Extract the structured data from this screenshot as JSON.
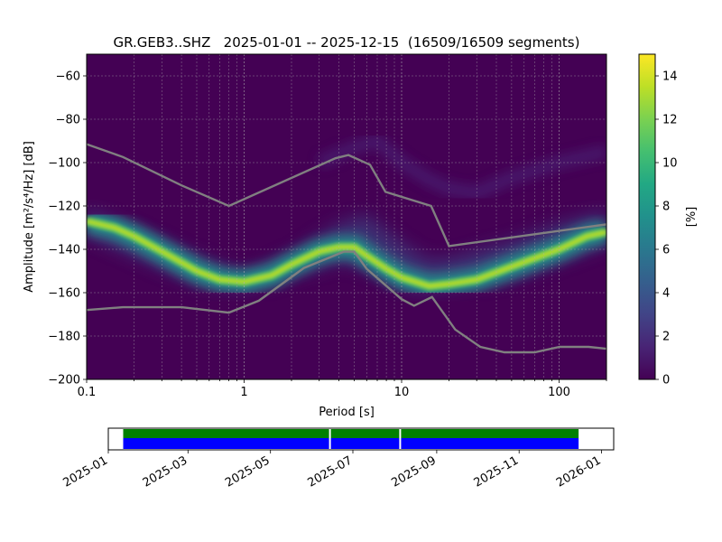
{
  "chart_data": [
    {
      "type": "heatmap",
      "title": "GR.GEB3..SHZ   2025-01-01 -- 2025-12-15  (16509/16509 segments)",
      "xlabel": "Period [s]",
      "ylabel": "Amplitude [m²/s⁴/Hz] [dB]",
      "x_scale": "log",
      "xlim": [
        0.1,
        200
      ],
      "ylim": [
        -200,
        -50
      ],
      "x_ticks": [
        0.1,
        1,
        10,
        100
      ],
      "x_tick_labels": [
        "0.1",
        "1",
        "10",
        "100"
      ],
      "y_ticks": [
        -200,
        -180,
        -160,
        -140,
        -120,
        -100,
        -80,
        -60
      ],
      "y_tick_labels": [
        "−200",
        "−180",
        "−160",
        "−140",
        "−120",
        "−100",
        "−80",
        "−60"
      ],
      "grid": true,
      "colormap": "viridis",
      "colorbar": {
        "label": "[%]",
        "range": [
          0,
          15
        ],
        "ticks": [
          0,
          2,
          4,
          6,
          8,
          10,
          12,
          14
        ],
        "tick_labels": [
          "0",
          "2",
          "4",
          "6",
          "8",
          "10",
          "12",
          "14"
        ]
      },
      "series": [
        {
          "role": "mode",
          "points": [
            [
              0.1,
              -127
            ],
            [
              0.15,
              -130
            ],
            [
              0.2,
              -134
            ],
            [
              0.3,
              -141
            ],
            [
              0.5,
              -150
            ],
            [
              0.7,
              -154
            ],
            [
              1,
              -155
            ],
            [
              1.5,
              -152
            ],
            [
              2,
              -147
            ],
            [
              3,
              -141
            ],
            [
              4,
              -139
            ],
            [
              5,
              -139
            ],
            [
              6,
              -143
            ],
            [
              8,
              -149
            ],
            [
              10,
              -153
            ],
            [
              15,
              -157
            ],
            [
              20,
              -156
            ],
            [
              30,
              -154
            ],
            [
              50,
              -148
            ],
            [
              100,
              -140
            ],
            [
              150,
              -134
            ],
            [
              200,
              -132
            ]
          ]
        },
        {
          "role": "upper spread",
          "points": [
            [
              0.1,
              -121
            ],
            [
              0.5,
              -143
            ],
            [
              1,
              -151
            ],
            [
              2,
              -142
            ],
            [
              4,
              -128
            ],
            [
              6,
              -124
            ],
            [
              10,
              -137
            ],
            [
              15,
              -145
            ],
            [
              20,
              -144
            ],
            [
              50,
              -136
            ],
            [
              100,
              -128
            ],
            [
              200,
              -122
            ]
          ]
        },
        {
          "role": "lower spread",
          "points": [
            [
              0.1,
              -134
            ],
            [
              0.5,
              -156
            ],
            [
              1,
              -159
            ],
            [
              2,
              -153
            ],
            [
              4,
              -146
            ],
            [
              6,
              -149
            ],
            [
              10,
              -158
            ],
            [
              15,
              -160
            ],
            [
              20,
              -158
            ],
            [
              50,
              -154
            ],
            [
              100,
              -146
            ],
            [
              200,
              -138
            ]
          ]
        },
        {
          "role": "faint high band",
          "points": [
            [
              3,
              -100
            ],
            [
              5,
              -93
            ],
            [
              7,
              -90
            ],
            [
              10,
              -100
            ],
            [
              15,
              -108
            ],
            [
              20,
              -112
            ],
            [
              30,
              -114
            ],
            [
              50,
              -107
            ],
            [
              100,
              -100
            ],
            [
              200,
              -95
            ]
          ]
        }
      ],
      "noise_models": [
        {
          "role": "upper noise model",
          "color": "#808080",
          "points": [
            [
              0.1,
              -91.5
            ],
            [
              0.17,
              -97.4
            ],
            [
              0.4,
              -110.5
            ],
            [
              0.8,
              -120
            ],
            [
              3.8,
              -98
            ],
            [
              4.6,
              -96.5
            ],
            [
              6.3,
              -101
            ],
            [
              7.9,
              -113.5
            ],
            [
              15.4,
              -120
            ],
            [
              20,
              -138.5
            ],
            [
              354,
              -126
            ]
          ]
        },
        {
          "role": "lower noise model",
          "color": "#808080",
          "points": [
            [
              0.1,
              -168
            ],
            [
              0.17,
              -166.7
            ],
            [
              0.4,
              -166.7
            ],
            [
              0.8,
              -169.2
            ],
            [
              1.24,
              -163.7
            ],
            [
              2.4,
              -148.6
            ],
            [
              4.3,
              -141.1
            ],
            [
              5,
              -141.1
            ],
            [
              6,
              -149
            ],
            [
              10,
              -163
            ],
            [
              12,
              -166
            ],
            [
              15.6,
              -162
            ],
            [
              21.9,
              -177
            ],
            [
              31.6,
              -185
            ],
            [
              45,
              -187.5
            ],
            [
              70,
              -187.5
            ],
            [
              101,
              -185
            ],
            [
              154,
              -185
            ],
            [
              328,
              -187.5
            ]
          ]
        }
      ]
    },
    {
      "type": "timeline",
      "x_range": [
        "2025-01-01",
        "2026-01-10"
      ],
      "x_tick_labels": [
        "2025-01",
        "2025-03",
        "2025-05",
        "2025-07",
        "2025-09",
        "2025-11",
        "2026-01"
      ],
      "x_ticks": [
        "2025-01-01",
        "2025-03-01",
        "2025-05-01",
        "2025-07-01",
        "2025-09-01",
        "2025-11-01",
        "2026-01-01"
      ],
      "coverage": {
        "start": "2025-01-12",
        "end": "2025-12-15",
        "gaps": [
          "2025-06-14",
          "2025-08-05"
        ],
        "top_color": "#008000",
        "bottom_color": "#0000ff"
      }
    }
  ]
}
